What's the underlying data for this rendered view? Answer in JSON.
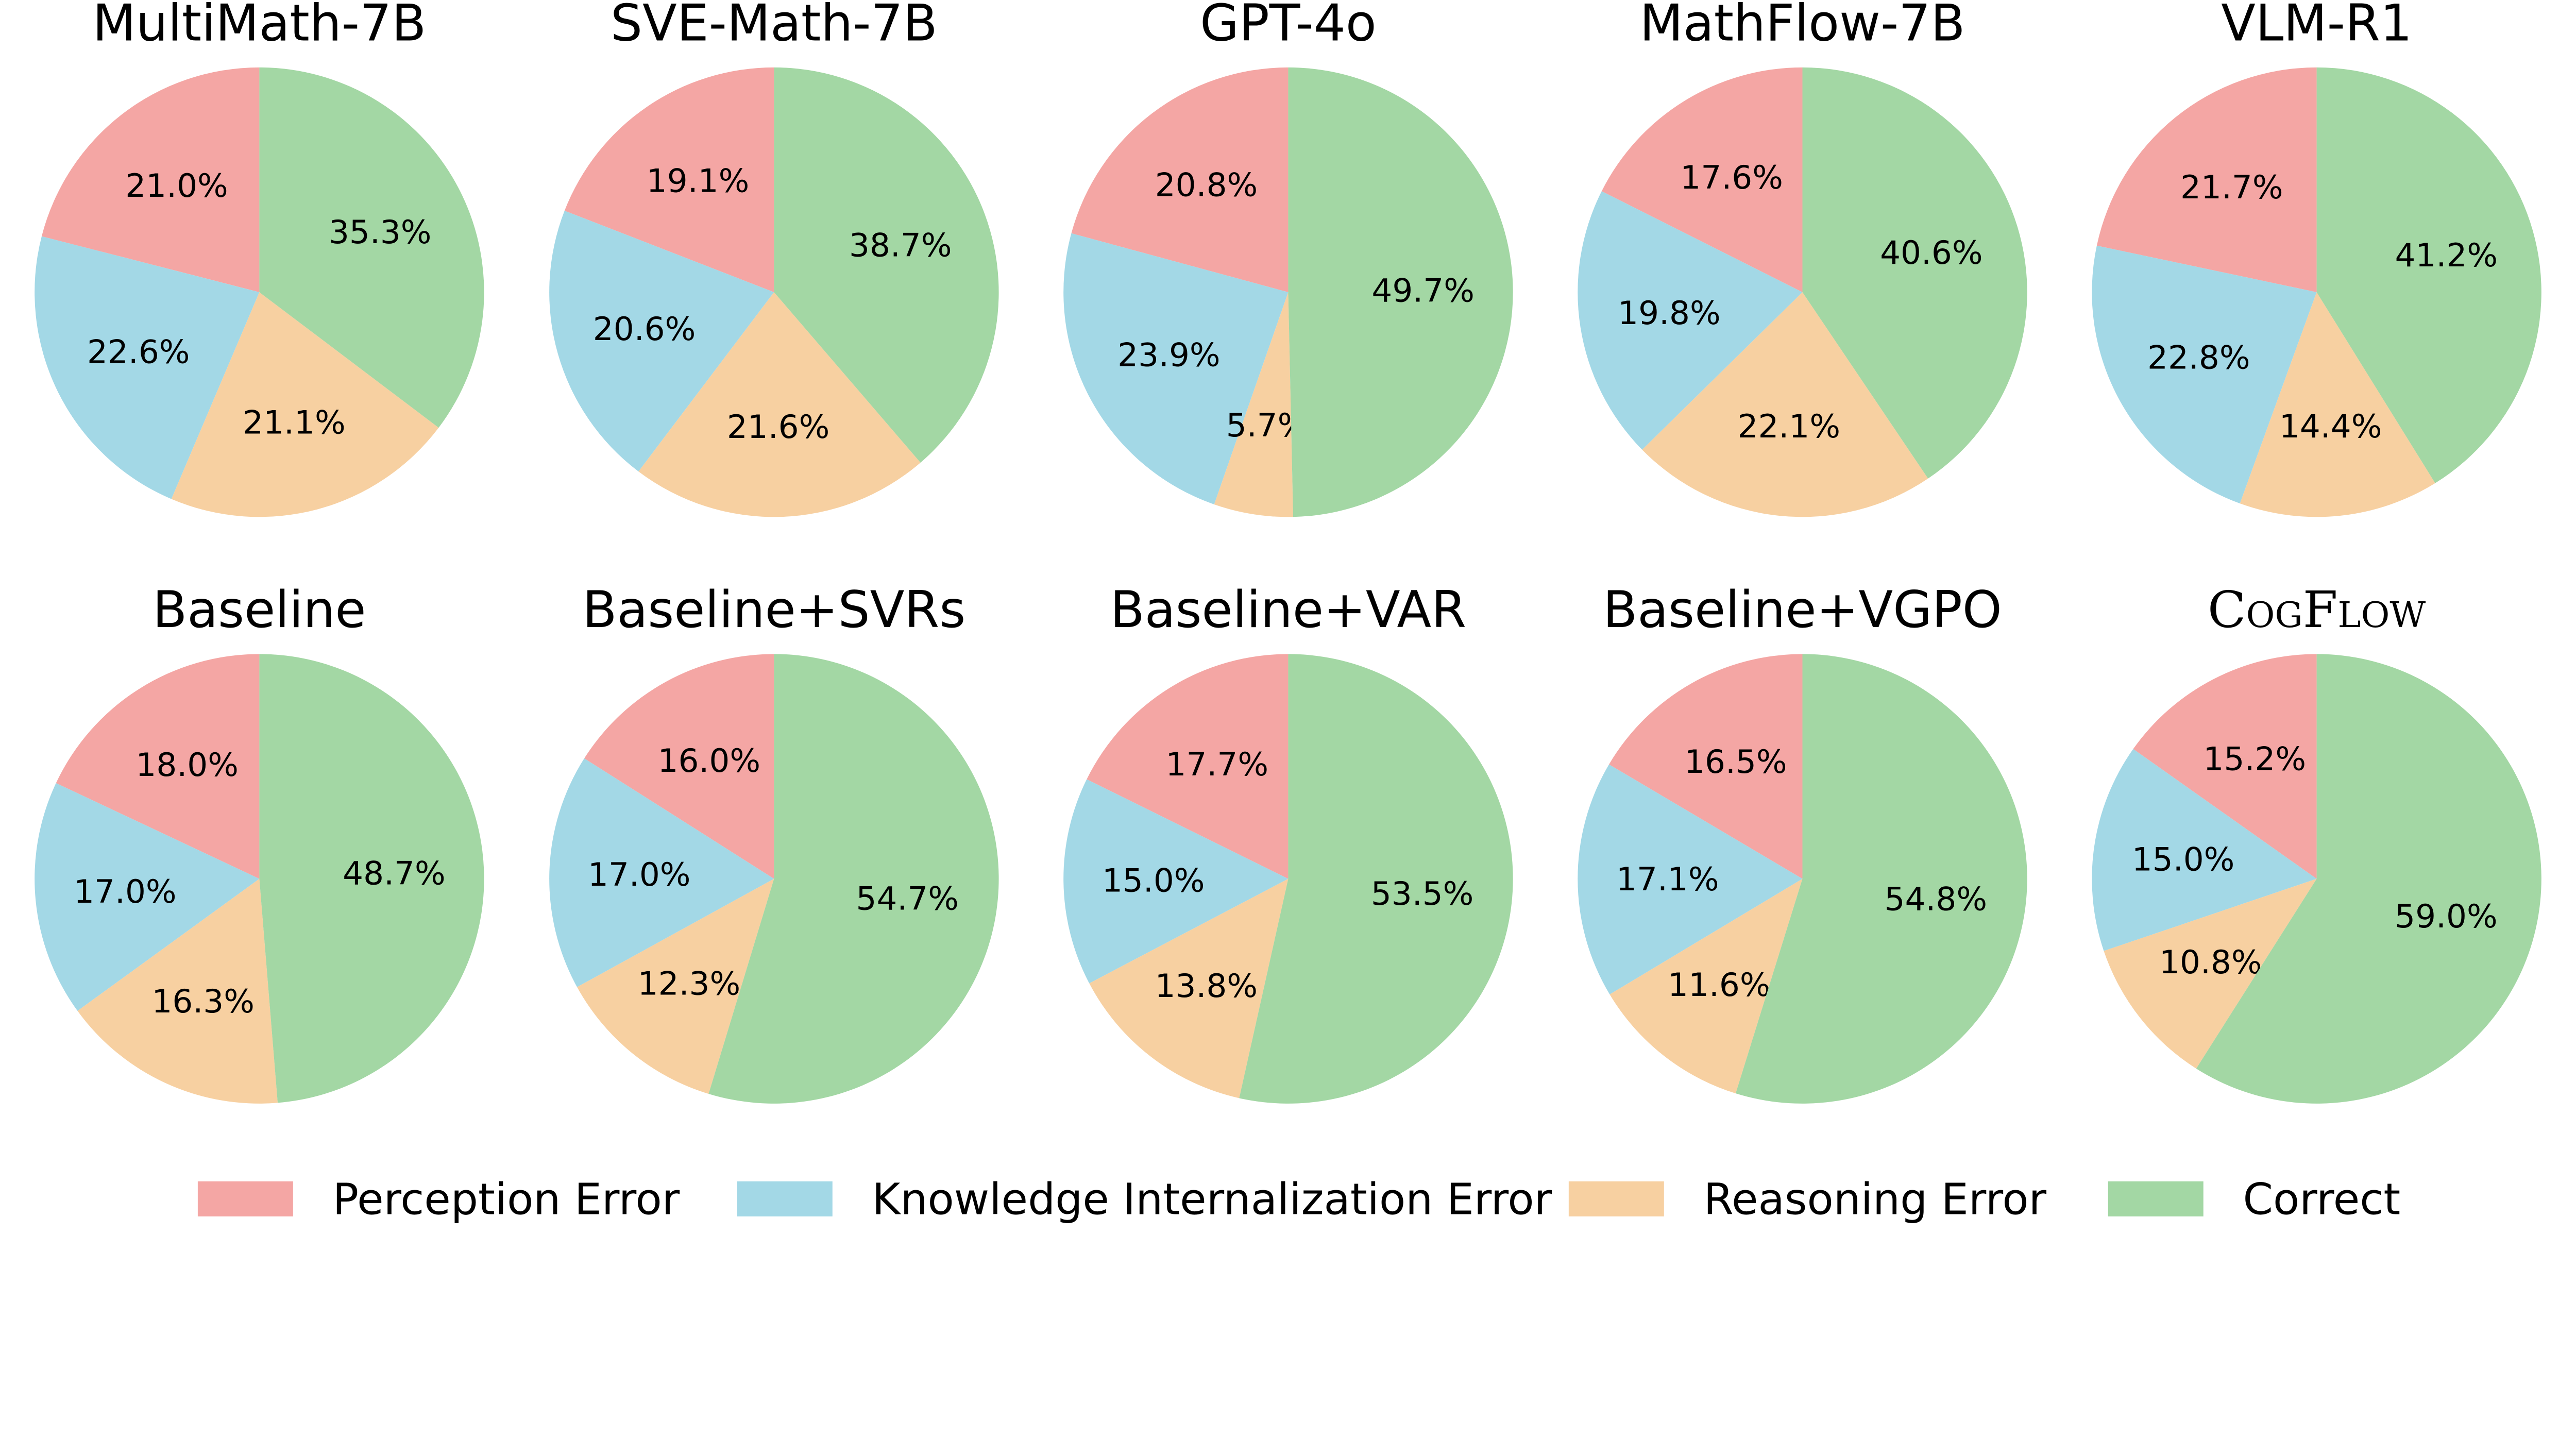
{
  "chart_data": [
    {
      "type": "pie",
      "title": "MultiMath-7B",
      "values": [
        21.0,
        22.6,
        21.1,
        35.3
      ]
    },
    {
      "type": "pie",
      "title": "SVE-Math-7B",
      "values": [
        19.1,
        20.6,
        21.6,
        38.7
      ]
    },
    {
      "type": "pie",
      "title": "GPT-4o",
      "values": [
        20.8,
        23.9,
        5.7,
        49.7
      ]
    },
    {
      "type": "pie",
      "title": "MathFlow-7B",
      "values": [
        17.6,
        19.8,
        22.1,
        40.6
      ]
    },
    {
      "type": "pie",
      "title": "VLM-R1",
      "values": [
        21.7,
        22.8,
        14.4,
        41.2
      ]
    },
    {
      "type": "pie",
      "title": "Baseline",
      "values": [
        18.0,
        17.0,
        16.3,
        48.7
      ]
    },
    {
      "type": "pie",
      "title": "Baseline+SVRs",
      "values": [
        16.0,
        17.0,
        12.3,
        54.7
      ]
    },
    {
      "type": "pie",
      "title": "Baseline+VAR",
      "values": [
        17.7,
        15.0,
        13.8,
        53.5
      ]
    },
    {
      "type": "pie",
      "title": "Baseline+VGPO",
      "values": [
        16.5,
        17.1,
        11.6,
        54.8
      ]
    },
    {
      "type": "pie",
      "title": "CogFlow",
      "title_style": "small-caps",
      "values": [
        15.2,
        15.0,
        10.8,
        59.0
      ]
    }
  ],
  "categories": [
    "Perception Error",
    "Knowledge Internalization Error",
    "Reasoning Error",
    "Correct"
  ],
  "colors": [
    "#F4A6A4",
    "#A3D8E6",
    "#F7D0A1",
    "#A3D7A4"
  ],
  "start_angle": "top, counterclockwise",
  "legend": {
    "placement": "bottom"
  }
}
